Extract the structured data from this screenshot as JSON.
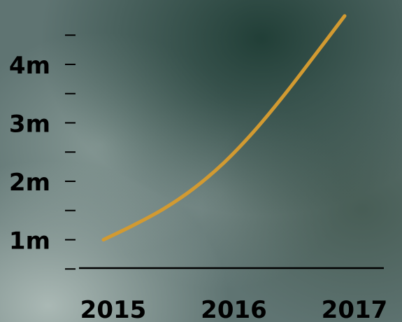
{
  "chart_data": {
    "type": "line",
    "title": "",
    "xlabel": "",
    "ylabel": "",
    "x": [
      "2015",
      "2016",
      "2017"
    ],
    "x_values": [
      2015,
      2016,
      2017
    ],
    "y_tick_labels": [
      "1m",
      "2m",
      "3m",
      "4m"
    ],
    "y_tick_values": [
      1000000,
      2000000,
      3000000,
      4000000
    ],
    "ylim": [
      0,
      4500000
    ],
    "xlim": [
      2014.6,
      2017.1
    ],
    "grid": false,
    "legend": "none",
    "series": [
      {
        "x": [
          2015,
          2015.25,
          2015.5,
          2015.75,
          2016,
          2016.25,
          2016.5,
          2016.75,
          2017
        ],
        "values": [
          1000000,
          1250000,
          1530000,
          1880000,
          2320000,
          2860000,
          3480000,
          4150000,
          4830000
        ],
        "color": "#d29a31"
      }
    ]
  },
  "colors": {
    "line": "#d29a31",
    "axis": "#000000",
    "text": "#000000",
    "background": "#5f7472"
  }
}
